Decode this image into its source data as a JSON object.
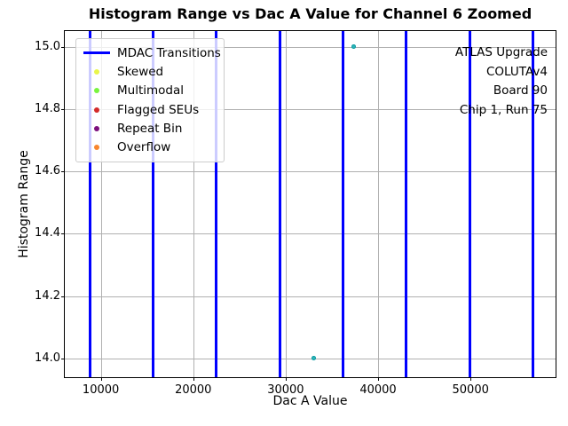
{
  "title": "Histogram Range vs Dac A Value for Channel 6 Zoomed",
  "chart_data": {
    "type": "scatter",
    "title": "Histogram Range vs Dac A Value for Channel 6 Zoomed",
    "xlabel": "Dac A Value",
    "ylabel": "Histogram Range",
    "xlim": [
      6100,
      59200
    ],
    "ylim": [
      13.94,
      15.05
    ],
    "grid": true,
    "grid_color": "#b0b0b0",
    "x_ticks": {
      "values": [
        10000,
        20000,
        30000,
        40000,
        50000
      ],
      "labels": [
        "10000",
        "20000",
        "30000",
        "40000",
        "50000"
      ]
    },
    "y_ticks": {
      "values": [
        14.0,
        14.2,
        14.4,
        14.6,
        14.8,
        15.0
      ],
      "labels": [
        "14.0",
        "14.2",
        "14.4",
        "14.6",
        "14.8",
        "15.0"
      ]
    },
    "mdac_transitions": {
      "name": "MDAC Transitions",
      "color": "#0000ff",
      "x_values": [
        8800,
        15650,
        22500,
        29350,
        36200,
        43050,
        49900,
        56750
      ]
    },
    "points": {
      "color": "#2db5b8",
      "edge_color": "#129ca4",
      "data": [
        {
          "x": 33000,
          "y": 14.0
        },
        {
          "x": 37400,
          "y": 15.0
        }
      ]
    }
  },
  "legend": {
    "items": [
      {
        "label": "MDAC Transitions",
        "marker": "line",
        "color": "#0000ff"
      },
      {
        "label": "Skewed",
        "marker": "dot",
        "color": "#e9f64b"
      },
      {
        "label": "Multimodal",
        "marker": "dot",
        "color": "#79f43e"
      },
      {
        "label": "Flagged SEUs",
        "marker": "dot",
        "color": "#d42a2a"
      },
      {
        "label": "Repeat Bin",
        "marker": "dot",
        "color": "#7c0e7c"
      },
      {
        "label": "Overflow",
        "marker": "dot",
        "color": "#f8862d"
      }
    ]
  },
  "annotation": {
    "lines": [
      "ATLAS Upgrade",
      "COLUTAv4",
      "Board 90",
      "Chip 1, Run 75"
    ]
  }
}
